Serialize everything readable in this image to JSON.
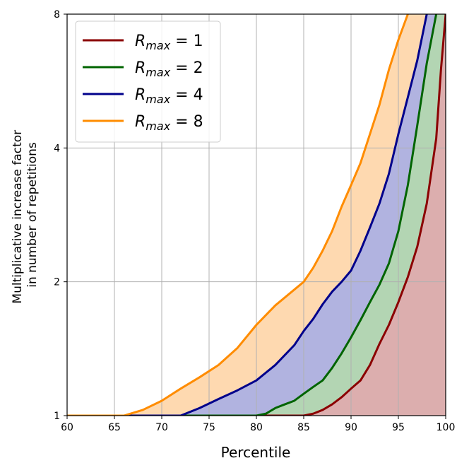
{
  "chart_data": {
    "type": "area",
    "xlabel": "Percentile",
    "ylabel_lines": [
      "Multiplicative increase factor",
      "in number of repetitions"
    ],
    "xlim": [
      60,
      100
    ],
    "ylim": [
      1,
      8
    ],
    "yscale": "log2",
    "xticks": [
      60,
      65,
      70,
      75,
      80,
      85,
      90,
      95,
      100
    ],
    "xtick_labels": [
      "60",
      "65",
      "70",
      "75",
      "80",
      "85",
      "90",
      "95",
      "100"
    ],
    "yticks": [
      1,
      2,
      4,
      8
    ],
    "ytick_labels": [
      "1",
      "2",
      "4",
      "8"
    ],
    "grid": true,
    "legend_position": "top-left",
    "series": [
      {
        "name": "R_max = 1",
        "legend_base": "R",
        "legend_sub": "max",
        "legend_rest": " = 1",
        "color": "#8b0000",
        "fill": "#dcaeae",
        "x": [
          60,
          85,
          86,
          87,
          88,
          89,
          90,
          91,
          92,
          93,
          94,
          95,
          96,
          97,
          98,
          99,
          99.5,
          100
        ],
        "y": [
          1,
          1,
          1.01,
          1.03,
          1.06,
          1.1,
          1.15,
          1.2,
          1.3,
          1.45,
          1.6,
          1.8,
          2.05,
          2.4,
          3.0,
          4.2,
          6.0,
          8.0
        ]
      },
      {
        "name": "R_max = 2",
        "legend_base": "R",
        "legend_sub": "max",
        "legend_rest": " = 2",
        "color": "#006400",
        "fill": "#b3d5b3",
        "x": [
          60,
          80,
          81,
          82,
          83,
          84,
          85,
          86,
          87,
          88,
          89,
          90,
          91,
          92,
          93,
          94,
          95,
          96,
          97,
          98,
          99
        ],
        "y": [
          1,
          1,
          1.01,
          1.04,
          1.06,
          1.08,
          1.12,
          1.16,
          1.2,
          1.28,
          1.38,
          1.5,
          1.64,
          1.8,
          1.97,
          2.2,
          2.6,
          3.3,
          4.5,
          6.2,
          8.0
        ]
      },
      {
        "name": "R_max = 4",
        "legend_base": "R",
        "legend_sub": "max",
        "legend_rest": " = 4",
        "color": "#00008b",
        "fill": "#b1b3e0",
        "x": [
          60,
          72,
          74,
          76,
          78,
          80,
          82,
          84,
          85,
          86,
          87,
          88,
          89,
          90,
          91,
          92,
          93,
          94,
          95,
          96,
          97,
          98
        ],
        "y": [
          1,
          1,
          1.04,
          1.09,
          1.14,
          1.2,
          1.3,
          1.44,
          1.55,
          1.65,
          1.78,
          1.9,
          2.0,
          2.12,
          2.35,
          2.65,
          3.0,
          3.5,
          4.3,
          5.2,
          6.3,
          8.0
        ]
      },
      {
        "name": "R_max = 8",
        "legend_base": "R",
        "legend_sub": "max",
        "legend_rest": " = 8",
        "color": "#ff8c00",
        "fill": "#fed9b0",
        "x": [
          60,
          66,
          68,
          70,
          72,
          74,
          76,
          78,
          80,
          82,
          84,
          85,
          86,
          87,
          88,
          89,
          90,
          91,
          92,
          93,
          94,
          95,
          96
        ],
        "y": [
          1,
          1,
          1.03,
          1.08,
          1.15,
          1.22,
          1.3,
          1.42,
          1.6,
          1.77,
          1.92,
          2.0,
          2.15,
          2.35,
          2.6,
          2.95,
          3.3,
          3.7,
          4.3,
          5.0,
          6.0,
          7.0,
          8.0
        ]
      }
    ]
  }
}
